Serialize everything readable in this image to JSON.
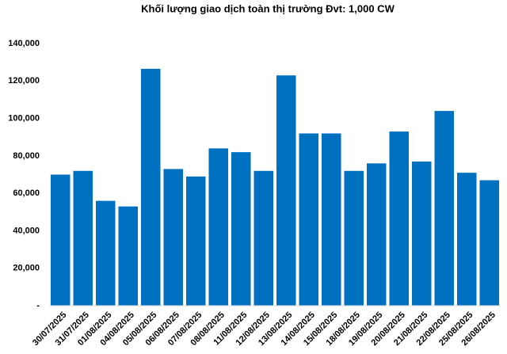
{
  "chart_data": {
    "type": "bar",
    "title": "Khối lượng giao dịch toàn thị trường Đvt: 1,000 CW",
    "categories": [
      "30/07/2025",
      "31/07/2025",
      "01/08/2025",
      "04/08/2025",
      "05/08/2025",
      "06/08/2025",
      "07/08/2025",
      "08/08/2025",
      "11/08/2025",
      "12/08/2025",
      "13/08/2025",
      "14/08/2025",
      "15/08/2025",
      "18/08/2025",
      "19/08/2025",
      "20/08/2025",
      "21/08/2025",
      "22/08/2025",
      "25/08/2025",
      "26/08/2025"
    ],
    "values": [
      70000,
      72000,
      56000,
      53000,
      126500,
      73000,
      69000,
      84000,
      82000,
      72000,
      123000,
      92000,
      92000,
      72000,
      76000,
      93000,
      77000,
      104000,
      71000,
      67000
    ],
    "color": "#0070c0",
    "ylim": [
      0,
      140000
    ],
    "yticks": [
      {
        "value": 0,
        "label": "-"
      },
      {
        "value": 20000,
        "label": "20,000"
      },
      {
        "value": 40000,
        "label": "40,000"
      },
      {
        "value": 60000,
        "label": "60,000"
      },
      {
        "value": 80000,
        "label": "80,000"
      },
      {
        "value": 100000,
        "label": "100,000"
      },
      {
        "value": 120000,
        "label": "120,000"
      },
      {
        "value": 140000,
        "label": "140,000"
      }
    ],
    "grid": false
  }
}
